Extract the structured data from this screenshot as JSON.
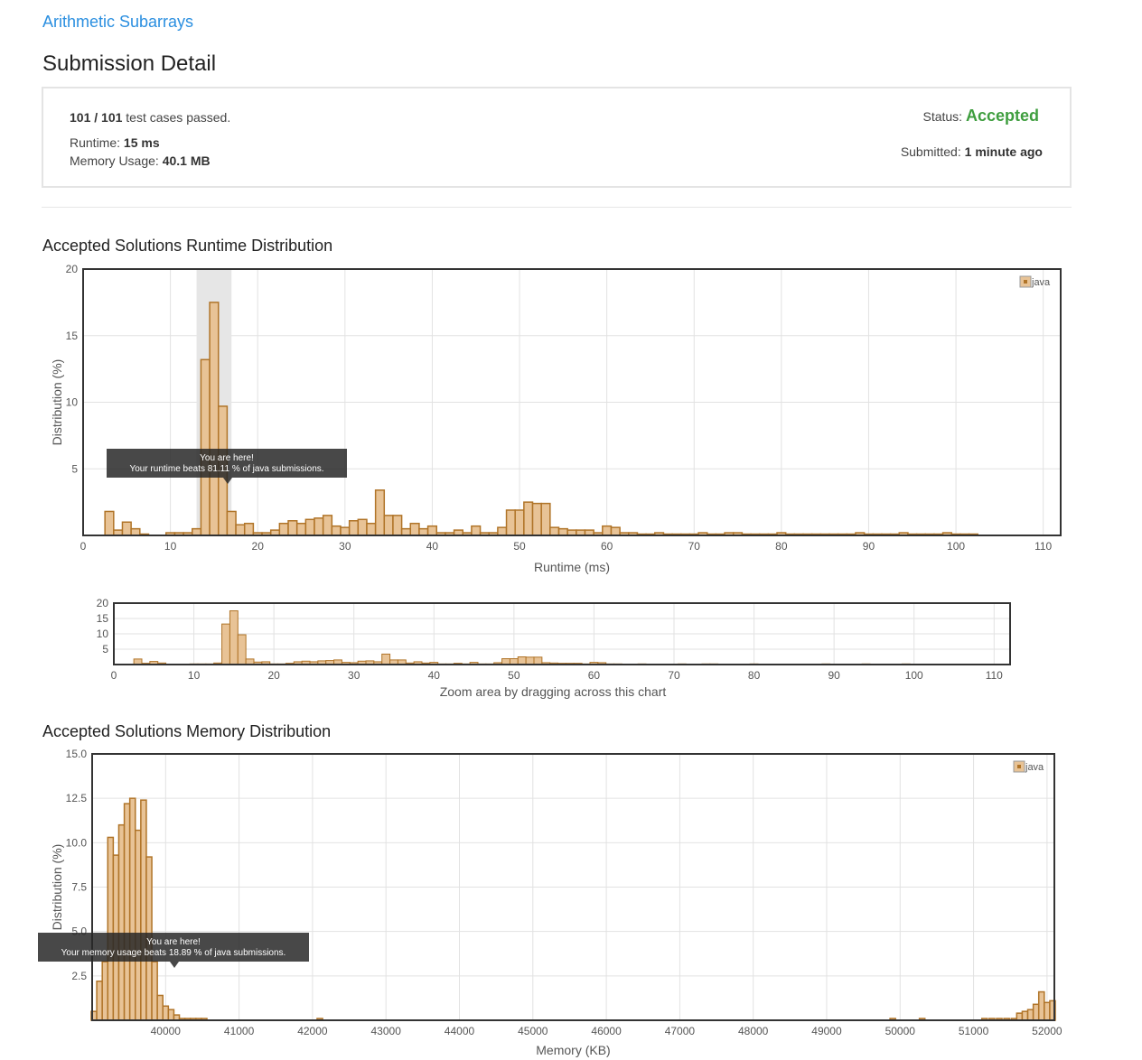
{
  "problem": {
    "title": "Arithmetic Subarrays"
  },
  "page": {
    "title": "Submission Detail"
  },
  "detail": {
    "tests_passed": "101 / 101",
    "tests_suffix": "test cases passed.",
    "runtime_label": "Runtime:",
    "runtime_value": "15 ms",
    "memory_label": "Memory Usage:",
    "memory_value": "40.1 MB",
    "status_label": "Status:",
    "status_value": "Accepted",
    "submitted_label": "Submitted:",
    "submitted_value": "1 minute ago"
  },
  "colors": {
    "bar_fill": "#e8c396",
    "bar_stroke": "#b07428",
    "highlight": "#e6e6e6",
    "accepted": "#3f9e3f",
    "link": "#2b8fe0"
  },
  "runtime_section": {
    "title": "Accepted Solutions Runtime Distribution"
  },
  "memory_section": {
    "title": "Accepted Solutions Memory Distribution"
  },
  "chart_data": [
    {
      "id": "runtime",
      "type": "bar",
      "xlabel": "Runtime (ms)",
      "ylabel": "Distribution (%)",
      "xlim": [
        0,
        112
      ],
      "ylim": [
        0,
        20
      ],
      "xticks": [
        0,
        10,
        20,
        30,
        40,
        50,
        60,
        70,
        80,
        90,
        100,
        110
      ],
      "yticks": [
        5,
        10,
        15,
        20
      ],
      "grid": true,
      "legend": "top-right",
      "series": [
        {
          "name": "java"
        }
      ],
      "highlight_range": [
        13,
        17
      ],
      "tooltip": {
        "title": "You are here!",
        "text": "Your runtime beats 81.11 % of java submissions."
      },
      "x": [
        3,
        4,
        5,
        6,
        7,
        10,
        11,
        12,
        13,
        14,
        15,
        16,
        17,
        18,
        19,
        20,
        21,
        22,
        23,
        24,
        25,
        26,
        27,
        28,
        29,
        30,
        31,
        32,
        33,
        34,
        35,
        36,
        37,
        38,
        39,
        40,
        41,
        42,
        43,
        44,
        45,
        46,
        47,
        48,
        49,
        50,
        51,
        52,
        53,
        54,
        55,
        56,
        57,
        58,
        59,
        60,
        61,
        62,
        63,
        64,
        65,
        66,
        67,
        68,
        69,
        70,
        71,
        72,
        73,
        74,
        75,
        76,
        77,
        78,
        79,
        80,
        81,
        82,
        83,
        84,
        85,
        86,
        87,
        88,
        89,
        90,
        91,
        92,
        93,
        94,
        95,
        96,
        97,
        98,
        99,
        100,
        101,
        102
      ],
      "values": [
        1.8,
        0.4,
        1.0,
        0.5,
        0.1,
        0.2,
        0.2,
        0.2,
        0.5,
        13.2,
        17.5,
        9.7,
        1.8,
        0.8,
        0.9,
        0.2,
        0.2,
        0.4,
        0.9,
        1.1,
        0.9,
        1.2,
        1.3,
        1.5,
        0.7,
        0.6,
        1.1,
        1.2,
        0.9,
        3.4,
        1.5,
        1.5,
        0.5,
        0.9,
        0.5,
        0.7,
        0.2,
        0.2,
        0.4,
        0.2,
        0.7,
        0.2,
        0.2,
        0.6,
        1.9,
        1.9,
        2.5,
        2.4,
        2.4,
        0.6,
        0.5,
        0.4,
        0.4,
        0.4,
        0.2,
        0.7,
        0.6,
        0.2,
        0.2,
        0.1,
        0.1,
        0.2,
        0.1,
        0.1,
        0.1,
        0.1,
        0.2,
        0.1,
        0.1,
        0.2,
        0.2,
        0.1,
        0.1,
        0.1,
        0.1,
        0.2,
        0.1,
        0.1,
        0.1,
        0.1,
        0.1,
        0.1,
        0.1,
        0.1,
        0.2,
        0.1,
        0.1,
        0.1,
        0.1,
        0.2,
        0.1,
        0.1,
        0.1,
        0.1,
        0.2,
        0.1,
        0.1,
        0.1
      ]
    },
    {
      "id": "runtime-navigator",
      "type": "bar",
      "xlabel": "Zoom area by dragging across this chart",
      "xlim": [
        0,
        112
      ],
      "ylim": [
        0,
        20
      ],
      "xticks": [
        0,
        10,
        20,
        30,
        40,
        50,
        60,
        70,
        80,
        90,
        100,
        110
      ],
      "yticks": [
        5,
        10,
        15,
        20
      ],
      "grid": true,
      "series_ref": "runtime"
    },
    {
      "id": "memory",
      "type": "bar",
      "xlabel": "Memory (KB)",
      "ylabel": "Distribution (%)",
      "xlim": [
        39000,
        52100
      ],
      "ylim": [
        0,
        15
      ],
      "xticks": [
        40000,
        41000,
        42000,
        43000,
        44000,
        45000,
        46000,
        47000,
        48000,
        49000,
        50000,
        51000,
        52000
      ],
      "yticks": [
        2.5,
        5.0,
        7.5,
        10.0,
        12.5,
        15.0
      ],
      "ytick_labels": [
        "2.5",
        "5.0",
        "7.5",
        "10.0",
        "12.5",
        "15.0"
      ],
      "grid": true,
      "legend": "top-right",
      "series": [
        {
          "name": "java"
        }
      ],
      "tooltip": {
        "title": "You are here!",
        "text": "Your memory usage beats 18.89 % of java submissions."
      },
      "x": [
        39025,
        39100,
        39175,
        39250,
        39325,
        39400,
        39475,
        39550,
        39625,
        39700,
        39775,
        39850,
        39925,
        40000,
        40075,
        40150,
        40225,
        40300,
        40375,
        40450,
        40525,
        42100,
        49900,
        50300,
        51150,
        51250,
        51350,
        51450,
        51550,
        51625,
        51700,
        51775,
        51850,
        51925,
        52000,
        52075
      ],
      "values": [
        0.5,
        2.2,
        3.3,
        10.3,
        9.3,
        11.0,
        12.2,
        12.5,
        10.7,
        12.4,
        9.2,
        3.3,
        1.4,
        0.8,
        0.6,
        0.3,
        0.1,
        0.1,
        0.1,
        0.1,
        0.1,
        0.1,
        0.1,
        0.1,
        0.1,
        0.1,
        0.1,
        0.1,
        0.1,
        0.4,
        0.5,
        0.6,
        0.9,
        1.6,
        1.0,
        1.1
      ]
    }
  ]
}
